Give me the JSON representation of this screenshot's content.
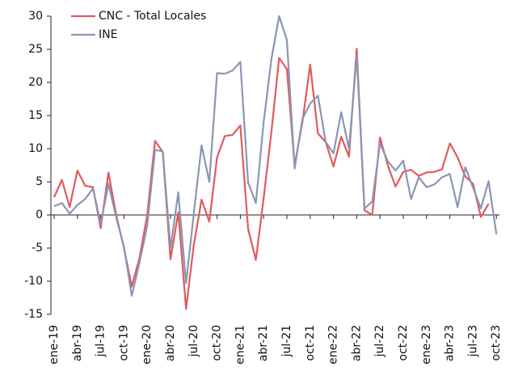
{
  "chart_data": {
    "type": "line",
    "categories": [
      "ene-19",
      null,
      null,
      "abr-19",
      null,
      null,
      "jul-19",
      null,
      null,
      "oct-19",
      null,
      null,
      "ene-20",
      null,
      null,
      "abr-20",
      null,
      null,
      "jul-20",
      null,
      null,
      "oct-20",
      null,
      null,
      "ene-21",
      null,
      null,
      "abr-21",
      null,
      null,
      "jul-21",
      null,
      null,
      "oct-21",
      null,
      null,
      "ene-22",
      null,
      null,
      "abr-22",
      null,
      null,
      "jul-22",
      null,
      null,
      "oct-22",
      null,
      null,
      "ene-23",
      null,
      null,
      "abr-23",
      null,
      null,
      "jul-23",
      null,
      null,
      "oct-23"
    ],
    "series": [
      {
        "name": "CNC - Total Locales",
        "color": "#e05a5f",
        "values": [
          2.7,
          5.3,
          1.2,
          6.7,
          4.4,
          4.2,
          -2.0,
          6.4,
          0,
          -5.0,
          -10.8,
          -6.5,
          0,
          11.2,
          9.5,
          -6.7,
          0.4,
          -14.2,
          -4.5,
          2.3,
          -1.0,
          8.7,
          11.9,
          12.1,
          13.5,
          -2.1,
          -6.8,
          2.5,
          12.5,
          23.7,
          22.0,
          7.5,
          14.0,
          22.7,
          12.3,
          11.0,
          7.3,
          11.8,
          8.8,
          25.1,
          0.7,
          0,
          11.7,
          7.5,
          4.3,
          6.5,
          6.8,
          5.9,
          6.4,
          6.5,
          6.9,
          10.8,
          8.7,
          5.8,
          4.7,
          -0.3,
          1.7,
          null
        ]
      },
      {
        "name": "INE",
        "color": "#8a96b4",
        "values": [
          1.3,
          1.8,
          0.2,
          1.5,
          2.4,
          4.0,
          -1.3,
          4.7,
          -0.4,
          -4.8,
          -12.2,
          -7.2,
          -1.6,
          9.8,
          9.6,
          -5.0,
          3.4,
          -10.3,
          0.2,
          10.5,
          5.0,
          21.4,
          21.3,
          21.8,
          23.1,
          4.9,
          1.8,
          14.0,
          23.5,
          30.0,
          26.4,
          7.0,
          14.5,
          16.8,
          18.0,
          11.0,
          9.3,
          15.5,
          10.0,
          24.0,
          1.0,
          2.0,
          10.8,
          8.1,
          6.7,
          8.2,
          2.4,
          5.7,
          4.2,
          4.6,
          5.7,
          6.2,
          1.2,
          7.2,
          4.1,
          1.0,
          5.1,
          -2.9
        ]
      }
    ],
    "ylim": [
      -15,
      30
    ],
    "yticks": [
      -15,
      -10,
      -5,
      0,
      5,
      10,
      15,
      20,
      25,
      30
    ],
    "grid": false,
    "legend": "top-left"
  }
}
